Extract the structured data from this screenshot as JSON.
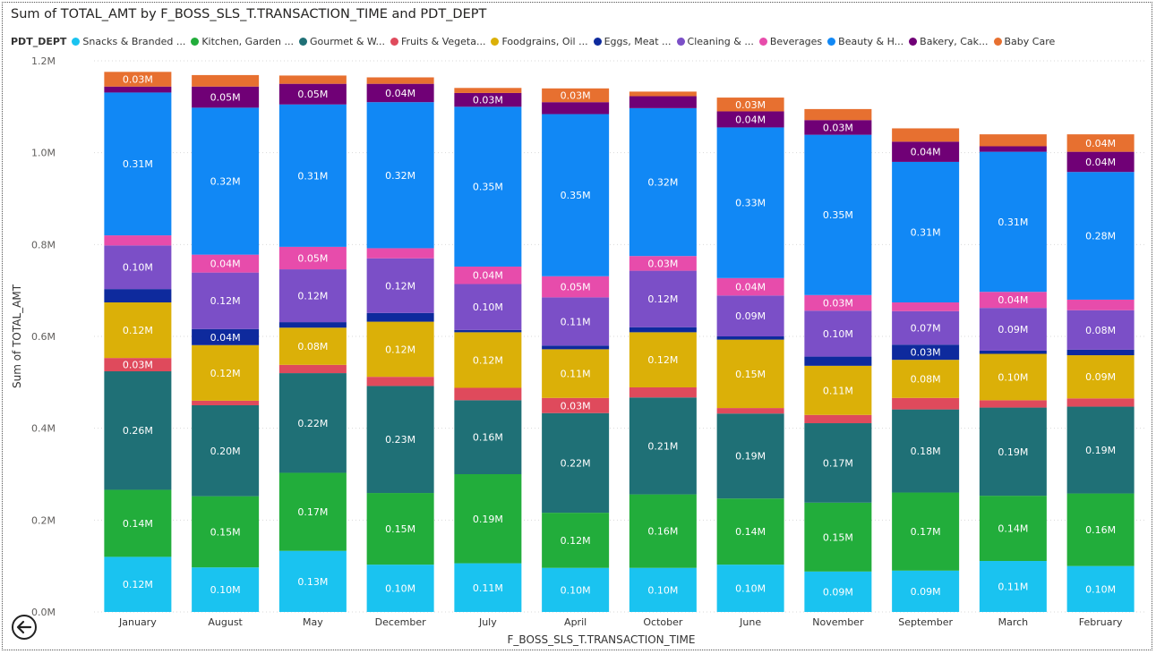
{
  "chart_data": {
    "type": "bar",
    "stacked": true,
    "title": "Sum of TOTAL_AMT by F_BOSS_SLS_T.TRANSACTION_TIME and PDT_DEPT",
    "xlabel": "F_BOSS_SLS_T.TRANSACTION_TIME",
    "ylabel": "Sum of TOTAL_AMT",
    "ylim": [
      0,
      1200000
    ],
    "yticks": [
      {
        "value": 0,
        "label": "0.0M"
      },
      {
        "value": 200000,
        "label": "0.2M"
      },
      {
        "value": 400000,
        "label": "0.4M"
      },
      {
        "value": 600000,
        "label": "0.6M"
      },
      {
        "value": 800000,
        "label": "0.8M"
      },
      {
        "value": 1000000,
        "label": "1.0M"
      },
      {
        "value": 1200000,
        "label": "1.2M"
      }
    ],
    "grid": true,
    "legend_title": "PDT_DEPT",
    "legend_position": "top-left",
    "categories": [
      "January",
      "August",
      "May",
      "December",
      "July",
      "April",
      "October",
      "June",
      "November",
      "September",
      "March",
      "February"
    ],
    "series": [
      {
        "name": "Snacks & Branded ...",
        "color": "#1ac3f0",
        "values": [
          120000,
          97000,
          133000,
          103000,
          106000,
          96000,
          96000,
          103000,
          88000,
          90000,
          111000,
          100000
        ]
      },
      {
        "name": "Kitchen, Garden ...",
        "color": "#22ad3b",
        "values": [
          146000,
          155000,
          170000,
          156000,
          194000,
          120000,
          160000,
          144000,
          150000,
          170000,
          142000,
          158000
        ]
      },
      {
        "name": "Gourmet & W...",
        "color": "#1f7076",
        "values": [
          258000,
          198000,
          217000,
          233000,
          161000,
          217000,
          211000,
          185000,
          173000,
          181000,
          192000,
          189000
        ]
      },
      {
        "name": "Fruits & Vegeta...",
        "color": "#df4a5c",
        "values": [
          29000,
          10000,
          18000,
          20000,
          27000,
          33000,
          22000,
          12000,
          18000,
          25000,
          16000,
          18000
        ]
      },
      {
        "name": "Foodgrains, Oil ...",
        "color": "#dbb008",
        "values": [
          121000,
          121000,
          81000,
          120000,
          121000,
          106000,
          120000,
          149000,
          107000,
          83000,
          101000,
          94000
        ]
      },
      {
        "name": "Eggs, Meat ...",
        "color": "#0e2a9d",
        "values": [
          29000,
          35000,
          12000,
          19000,
          5000,
          8000,
          11000,
          7000,
          20000,
          33000,
          7000,
          12000
        ]
      },
      {
        "name": "Cleaning & ...",
        "color": "#7b4fc7",
        "values": [
          95000,
          123000,
          115000,
          119000,
          100000,
          105000,
          123000,
          89000,
          100000,
          73000,
          93000,
          86000
        ]
      },
      {
        "name": "Beverages",
        "color": "#e74cab",
        "values": [
          22000,
          39000,
          49000,
          22000,
          38000,
          46000,
          32000,
          38000,
          34000,
          19000,
          35000,
          23000
        ]
      },
      {
        "name": "Beauty & H...",
        "color": "#1188f5",
        "values": [
          311000,
          320000,
          310000,
          318000,
          348000,
          353000,
          322000,
          328000,
          349000,
          306000,
          305000,
          278000
        ]
      },
      {
        "name": "Bakery, Cak...",
        "color": "#700076",
        "values": [
          13000,
          46000,
          45000,
          40000,
          30000,
          26000,
          26000,
          35000,
          32000,
          44000,
          12000,
          44000
        ]
      },
      {
        "name": "Baby Care",
        "color": "#e77030",
        "values": [
          32000,
          25000,
          18000,
          14000,
          11000,
          30000,
          10000,
          30000,
          24000,
          29000,
          26000,
          38000
        ]
      }
    ],
    "data_labels": [
      [
        "0.12M",
        "0.14M",
        "0.26M",
        "0.03M",
        "0.12M",
        "",
        "0.10M",
        "",
        "0.31M",
        "",
        "0.03M"
      ],
      [
        "0.10M",
        "0.15M",
        "0.20M",
        "",
        "0.12M",
        "0.04M",
        "0.12M",
        "0.04M",
        "0.32M",
        "0.05M",
        ""
      ],
      [
        "0.13M",
        "0.17M",
        "0.22M",
        "",
        "0.08M",
        "",
        "0.12M",
        "0.05M",
        "0.31M",
        "0.05M",
        ""
      ],
      [
        "0.10M",
        "0.15M",
        "0.23M",
        "",
        "0.12M",
        "",
        "0.12M",
        "",
        "0.32M",
        "0.04M",
        ""
      ],
      [
        "0.11M",
        "0.19M",
        "0.16M",
        "",
        "0.12M",
        "",
        "0.10M",
        "0.04M",
        "0.35M",
        "0.03M",
        ""
      ],
      [
        "0.10M",
        "0.12M",
        "0.22M",
        "0.03M",
        "0.11M",
        "",
        "0.11M",
        "0.05M",
        "0.35M",
        "",
        "0.03M"
      ],
      [
        "0.10M",
        "0.16M",
        "0.21M",
        "",
        "0.12M",
        "",
        "0.12M",
        "0.03M",
        "0.32M",
        "",
        ""
      ],
      [
        "0.10M",
        "0.14M",
        "0.19M",
        "",
        "0.15M",
        "",
        "0.09M",
        "0.04M",
        "0.33M",
        "0.04M",
        "0.03M"
      ],
      [
        "0.09M",
        "0.15M",
        "0.17M",
        "",
        "0.11M",
        "",
        "0.10M",
        "0.03M",
        "0.35M",
        "0.03M",
        ""
      ],
      [
        "0.09M",
        "0.17M",
        "0.18M",
        "",
        "0.08M",
        "0.03M",
        "0.07M",
        "",
        "0.31M",
        "0.04M",
        ""
      ],
      [
        "0.11M",
        "0.14M",
        "0.19M",
        "",
        "0.10M",
        "",
        "0.09M",
        "0.04M",
        "0.31M",
        "",
        ""
      ],
      [
        "0.10M",
        "0.16M",
        "0.19M",
        "",
        "0.09M",
        "",
        "0.08M",
        "",
        "0.28M",
        "0.04M",
        "0.04M"
      ]
    ]
  },
  "icons": {
    "back": "back-arrow-icon"
  }
}
